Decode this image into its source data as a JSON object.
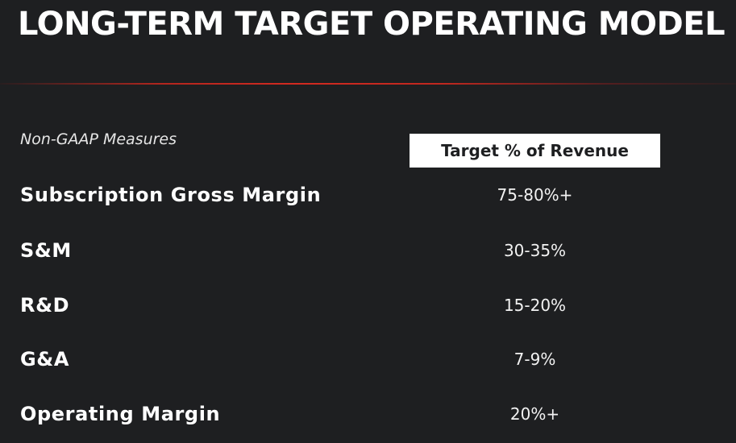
{
  "slide": {
    "title": "LONG-TERM TARGET OPERATING MODEL",
    "subheading": "Non-GAAP Measures",
    "column_header": "Target % of Revenue",
    "accent_color": "#d22a20",
    "background_color": "#1e1f21"
  },
  "table": {
    "rows": [
      {
        "label": "Subscription Gross Margin",
        "value": "75-80%+"
      },
      {
        "label": "S&M",
        "value": "30-35%"
      },
      {
        "label": "R&D",
        "value": "15-20%"
      },
      {
        "label": "G&A",
        "value": "7-9%"
      },
      {
        "label": "Operating Margin",
        "value": "20%+"
      }
    ]
  }
}
